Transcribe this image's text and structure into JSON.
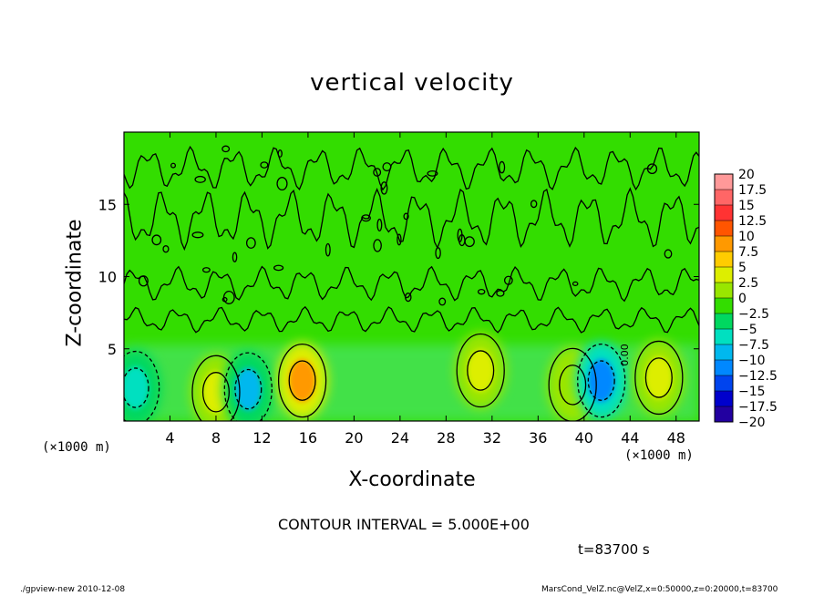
{
  "chart_data": {
    "type": "heatmap",
    "title": "vertical velocity",
    "xlabel": "X-coordinate",
    "ylabel": "Z-coordinate",
    "x_unit": "(×1000 m)",
    "y_unit": "(×1000 m)",
    "xlim": [
      0,
      50
    ],
    "ylim": [
      0,
      20
    ],
    "x_ticks": [
      4,
      8,
      12,
      16,
      20,
      24,
      28,
      32,
      36,
      40,
      44,
      48
    ],
    "y_ticks": [
      5,
      10,
      15
    ],
    "colorbar": {
      "levels": [
        "20",
        "17.5",
        "15",
        "12.5",
        "10",
        "7.5",
        "5",
        "2.5",
        "0",
        "−2.5",
        "−5",
        "−7.5",
        "−10",
        "−12.5",
        "−15",
        "−17.5",
        "−20"
      ],
      "colors": [
        "#ff9999",
        "#ff6666",
        "#ff3333",
        "#ff5500",
        "#ff9900",
        "#ffcc00",
        "#ddee00",
        "#99e600",
        "#33dd00",
        "#00d860",
        "#00e0c0",
        "#00b8ee",
        "#0088ff",
        "#0044ee",
        "#0000cc",
        "#2200a0",
        "#550099"
      ]
    },
    "features": [
      {
        "type": "updraft",
        "x": 8,
        "z": 2.0,
        "peak": 5
      },
      {
        "type": "downdraft",
        "x": 10.8,
        "z": 2.2,
        "peak": -7.5
      },
      {
        "type": "updraft",
        "x": 15.5,
        "z": 2.8,
        "peak": 10
      },
      {
        "type": "updraft",
        "x": 31,
        "z": 3.5,
        "peak": 5
      },
      {
        "type": "updraft",
        "x": 39,
        "z": 2.5,
        "peak": 2.5
      },
      {
        "type": "downdraft",
        "x": 41.5,
        "z": 2.8,
        "peak": -10
      },
      {
        "type": "updraft",
        "x": 46.5,
        "z": 3.0,
        "peak": 5
      },
      {
        "type": "downdraft",
        "x": 1,
        "z": 2.3,
        "peak": -5
      }
    ],
    "contour_label": "0.00"
  },
  "contour_interval": "CONTOUR INTERVAL = 5.000E+00",
  "time_label": "t=83700 s",
  "footer_left": "./gpview-new  2010-12-08",
  "footer_right": "MarsCond_VelZ.nc@VelZ,x=0:50000,z=0:20000,t=83700"
}
